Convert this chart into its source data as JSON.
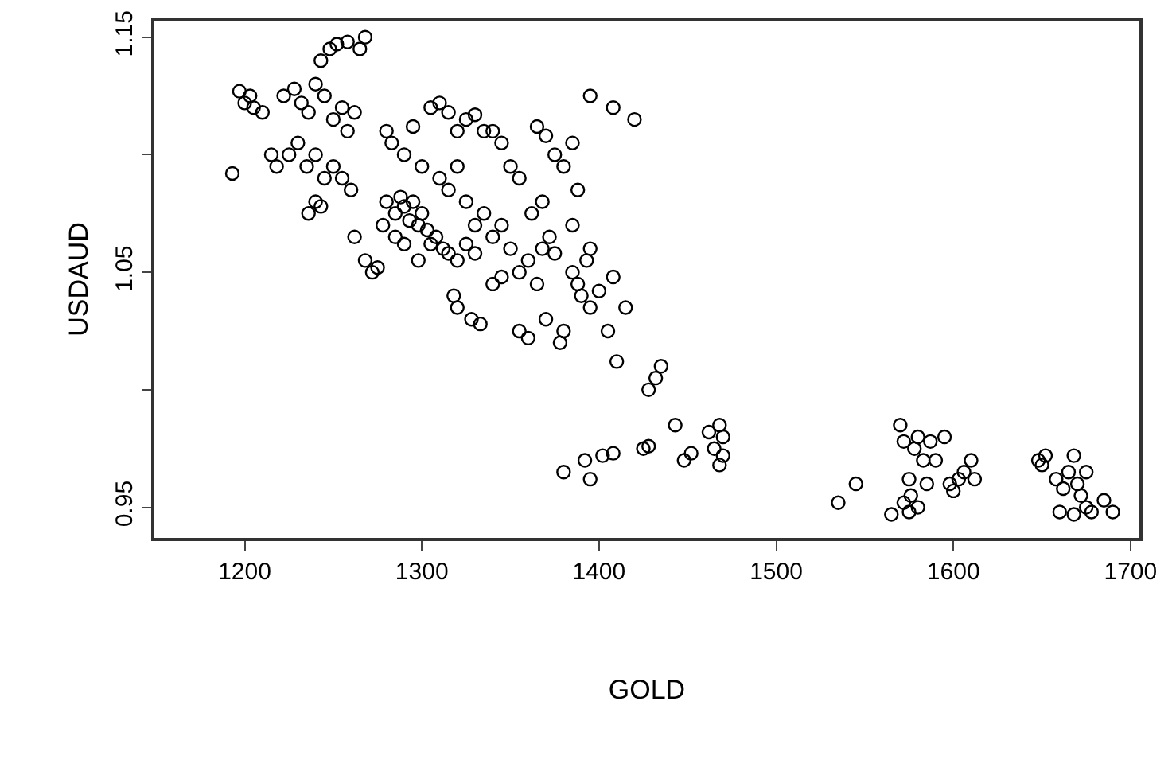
{
  "chart_data": {
    "type": "scatter",
    "xlabel": "GOLD",
    "ylabel": "USDAUD",
    "marker": "circle",
    "xlim": [
      1149,
      1705
    ],
    "ylim": [
      0.937,
      1.157
    ],
    "xticks": [
      1200,
      1300,
      1400,
      1500,
      1600,
      1700
    ],
    "yticks": [
      0.95,
      {
        "value": 1.0,
        "label": null
      },
      1.05,
      {
        "value": 1.1,
        "label": null
      },
      1.15
    ],
    "series": [
      {
        "color": "#000000",
        "x": [
          1193,
          1197,
          1200,
          1205,
          1203,
          1210,
          1215,
          1218,
          1222,
          1228,
          1232,
          1236,
          1240,
          1243,
          1248,
          1252,
          1258,
          1265,
          1268,
          1245,
          1250,
          1255,
          1258,
          1262,
          1225,
          1230,
          1235,
          1240,
          1245,
          1250,
          1255,
          1260,
          1236,
          1240,
          1243,
          1262,
          1268,
          1272,
          1275,
          1280,
          1283,
          1290,
          1295,
          1300,
          1305,
          1310,
          1315,
          1320,
          1325,
          1330,
          1335,
          1340,
          1345,
          1350,
          1355,
          1365,
          1370,
          1375,
          1380,
          1385,
          1388,
          1395,
          1408,
          1420,
          1280,
          1285,
          1288,
          1290,
          1293,
          1295,
          1298,
          1300,
          1303,
          1305,
          1308,
          1312,
          1315,
          1320,
          1325,
          1330,
          1285,
          1290,
          1278,
          1298,
          1310,
          1315,
          1320,
          1325,
          1330,
          1335,
          1340,
          1345,
          1318,
          1320,
          1328,
          1333,
          1340,
          1345,
          1350,
          1355,
          1360,
          1365,
          1368,
          1372,
          1375,
          1355,
          1360,
          1370,
          1378,
          1380,
          1385,
          1388,
          1390,
          1393,
          1395,
          1400,
          1405,
          1408,
          1410,
          1415,
          1362,
          1368,
          1385,
          1395,
          1428,
          1432,
          1435,
          1443,
          1380,
          1392,
          1395,
          1402,
          1408,
          1425,
          1428,
          1448,
          1452,
          1462,
          1465,
          1468,
          1470,
          1468,
          1470,
          1535,
          1545,
          1565,
          1570,
          1572,
          1575,
          1576,
          1578,
          1580,
          1583,
          1585,
          1587,
          1590,
          1595,
          1598,
          1600,
          1603,
          1606,
          1610,
          1612,
          1575,
          1572,
          1580,
          1648,
          1650,
          1652,
          1658,
          1662,
          1665,
          1668,
          1670,
          1672,
          1675,
          1675,
          1678,
          1660,
          1668,
          1685,
          1690
        ],
        "values": [
          1.092,
          1.127,
          1.122,
          1.12,
          1.125,
          1.118,
          1.1,
          1.095,
          1.125,
          1.128,
          1.122,
          1.118,
          1.13,
          1.14,
          1.145,
          1.147,
          1.148,
          1.145,
          1.15,
          1.125,
          1.115,
          1.12,
          1.11,
          1.118,
          1.1,
          1.105,
          1.095,
          1.1,
          1.09,
          1.095,
          1.09,
          1.085,
          1.075,
          1.08,
          1.078,
          1.065,
          1.055,
          1.05,
          1.052,
          1.11,
          1.105,
          1.1,
          1.112,
          1.095,
          1.12,
          1.122,
          1.118,
          1.11,
          1.115,
          1.117,
          1.11,
          1.11,
          1.105,
          1.095,
          1.09,
          1.112,
          1.108,
          1.1,
          1.095,
          1.105,
          1.085,
          1.125,
          1.12,
          1.115,
          1.08,
          1.075,
          1.082,
          1.078,
          1.072,
          1.08,
          1.07,
          1.075,
          1.068,
          1.062,
          1.065,
          1.06,
          1.058,
          1.055,
          1.062,
          1.058,
          1.065,
          1.062,
          1.07,
          1.055,
          1.09,
          1.085,
          1.095,
          1.08,
          1.07,
          1.075,
          1.065,
          1.07,
          1.04,
          1.035,
          1.03,
          1.028,
          1.045,
          1.048,
          1.06,
          1.05,
          1.055,
          1.045,
          1.06,
          1.065,
          1.058,
          1.025,
          1.022,
          1.03,
          1.02,
          1.025,
          1.05,
          1.045,
          1.04,
          1.055,
          1.035,
          1.042,
          1.025,
          1.048,
          1.012,
          1.035,
          1.075,
          1.08,
          1.07,
          1.06,
          1.0,
          1.005,
          1.01,
          0.985,
          0.965,
          0.97,
          0.962,
          0.972,
          0.973,
          0.975,
          0.976,
          0.97,
          0.973,
          0.982,
          0.975,
          0.968,
          0.98,
          0.985,
          0.972,
          0.952,
          0.96,
          0.947,
          0.985,
          0.978,
          0.962,
          0.955,
          0.975,
          0.98,
          0.97,
          0.96,
          0.978,
          0.97,
          0.98,
          0.96,
          0.957,
          0.962,
          0.965,
          0.97,
          0.962,
          0.948,
          0.952,
          0.95,
          0.97,
          0.968,
          0.972,
          0.962,
          0.958,
          0.965,
          0.972,
          0.96,
          0.955,
          0.95,
          0.965,
          0.948,
          0.948,
          0.947,
          0.953,
          0.948
        ]
      }
    ]
  }
}
